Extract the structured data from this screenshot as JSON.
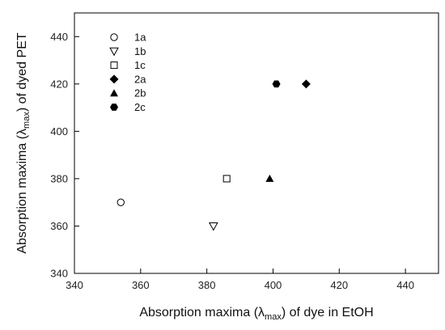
{
  "chart_data": {
    "type": "scatter",
    "title": "",
    "xlabel": {
      "pre": "Absorption maxima (",
      "lambda": "λ",
      "sub": "max",
      "post": ") of dye in EtOH"
    },
    "ylabel": {
      "pre": "Absorption maxima (",
      "lambda": "λ",
      "sub": "max",
      "post": ") of dyed PET"
    },
    "xlim": [
      340,
      450
    ],
    "ylim": [
      340,
      450
    ],
    "x_ticks": [
      340,
      360,
      380,
      400,
      420,
      440
    ],
    "y_ticks": [
      340,
      360,
      380,
      400,
      420,
      440
    ],
    "grid": false,
    "legend_position": "top-left",
    "series": [
      {
        "name": "1a",
        "marker": "circle-open",
        "points": [
          [
            354,
            370
          ]
        ]
      },
      {
        "name": "1b",
        "marker": "triangle-down-open",
        "points": [
          [
            382,
            360
          ]
        ]
      },
      {
        "name": "1c",
        "marker": "square-open",
        "points": [
          [
            386,
            380
          ]
        ]
      },
      {
        "name": "2a",
        "marker": "diamond-filled",
        "points": [
          [
            410,
            420
          ]
        ]
      },
      {
        "name": "2b",
        "marker": "triangle-up-filled",
        "points": [
          [
            399,
            380
          ]
        ]
      },
      {
        "name": "2c",
        "marker": "hexagon-filled",
        "points": [
          [
            401,
            420
          ]
        ]
      }
    ]
  }
}
